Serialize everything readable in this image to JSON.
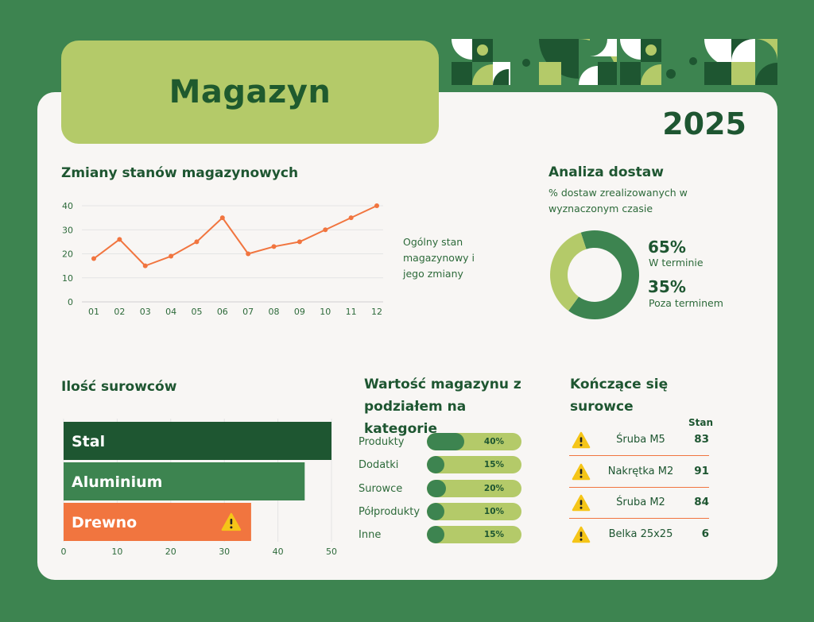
{
  "header": {
    "title": "Magazyn",
    "year": "2025"
  },
  "colors": {
    "dark_green": "#1e5631",
    "mid_green": "#3d8450",
    "light_green": "#b4ca69",
    "orange": "#f1753f",
    "warning_yellow": "#f5c518"
  },
  "line_section": {
    "title": "Zmiany stanów magazynowych",
    "note": "Ogólny stan magazynowy i jego zmiany"
  },
  "delivery_section": {
    "title": "Analiza dostaw",
    "subtitle": "% dostaw zrealizowanych w wyznaczonym czasie",
    "on_time_pct": "65%",
    "on_time_label": "W terminie",
    "late_pct": "35%",
    "late_label": "Poza terminem"
  },
  "materials_section": {
    "title": "Ilość surowców"
  },
  "value_section": {
    "title": "Wartość magazynu z podziałem na kategorie",
    "rows": [
      {
        "label": "Produkty",
        "pct": "40%"
      },
      {
        "label": "Dodatki",
        "pct": "15%"
      },
      {
        "label": "Surowce",
        "pct": "20%"
      },
      {
        "label": "Półprodukty",
        "pct": "10%"
      },
      {
        "label": "Inne",
        "pct": "15%"
      }
    ]
  },
  "ending_section": {
    "title": "Kończące się surowce",
    "column_header": "Stan",
    "rows": [
      {
        "name": "Śruba M5",
        "value": "83"
      },
      {
        "name": "Nakrętka M2",
        "value": "91"
      },
      {
        "name": "Śruba M2",
        "value": "84"
      },
      {
        "name": "Belka 25x25",
        "value": "6"
      }
    ]
  },
  "chart_data": [
    {
      "type": "line",
      "title": "Zmiany stanów magazynowych",
      "x": [
        "01",
        "02",
        "03",
        "04",
        "05",
        "06",
        "07",
        "08",
        "09",
        "10",
        "11",
        "12"
      ],
      "values": [
        18,
        26,
        15,
        19,
        25,
        35,
        20,
        23,
        25,
        30,
        35,
        40
      ],
      "ylim": [
        0,
        40
      ],
      "yticks": [
        0,
        10,
        20,
        30,
        40
      ],
      "grid": true,
      "color": "#f1753f"
    },
    {
      "type": "pie",
      "title": "Analiza dostaw",
      "donut": true,
      "slices": [
        {
          "label": "W terminie",
          "value": 65,
          "color": "#3d8450"
        },
        {
          "label": "Poza terminem",
          "value": 35,
          "color": "#b4ca69"
        }
      ]
    },
    {
      "type": "bar",
      "orientation": "horizontal",
      "title": "Ilość surowców",
      "categories": [
        "Stal",
        "Aluminium",
        "Drewno"
      ],
      "values": [
        50,
        45,
        35
      ],
      "colors": [
        "#1e5631",
        "#3d8450",
        "#f1753f"
      ],
      "warning": [
        false,
        false,
        true
      ],
      "xlim": [
        0,
        50
      ],
      "xticks": [
        0,
        10,
        20,
        30,
        40,
        50
      ],
      "grid": true
    },
    {
      "type": "bar",
      "orientation": "horizontal",
      "title": "Wartość magazynu z podziałem na kategorie",
      "categories": [
        "Produkty",
        "Dodatki",
        "Surowce",
        "Półprodukty",
        "Inne"
      ],
      "values": [
        40,
        15,
        20,
        10,
        15
      ],
      "unit": "%"
    }
  ]
}
